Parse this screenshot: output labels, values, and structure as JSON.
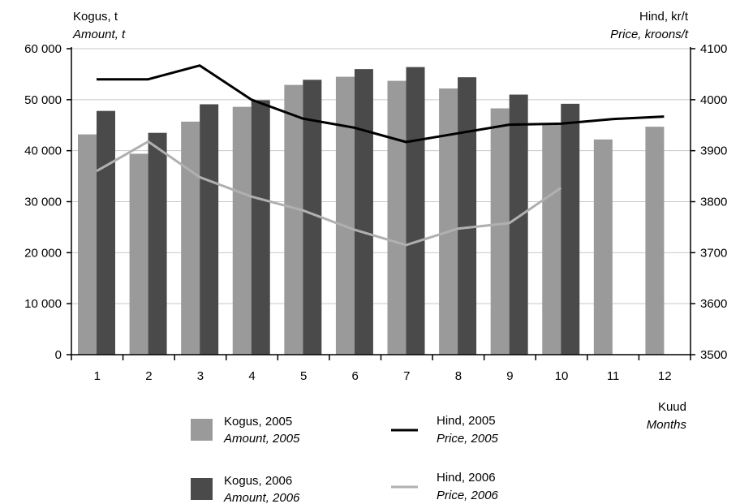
{
  "chart_data": {
    "type": "bar",
    "left_axis": {
      "title": "Kogus, t",
      "title_en": "Amount, t",
      "ticks": [
        "0",
        "10 000",
        "20 000",
        "30 000",
        "40 000",
        "50 000",
        "60 000"
      ],
      "ylim": [
        0,
        60000
      ]
    },
    "right_axis": {
      "title": "Hind, kr/t",
      "title_en": "Price, kroons/t",
      "ticks": [
        "3500",
        "3600",
        "3700",
        "3800",
        "3900",
        "4000",
        "4100"
      ],
      "ylim": [
        3500,
        4100
      ]
    },
    "x_axis": {
      "title": "Kuud",
      "title_en": "Months"
    },
    "categories": [
      "1",
      "2",
      "3",
      "4",
      "5",
      "6",
      "7",
      "8",
      "9",
      "10",
      "11",
      "12"
    ],
    "series": [
      {
        "name": "Kogus, 2005",
        "name_en": "Amount, 2005",
        "kind": "bar",
        "axis": "left",
        "color": "#9a9a9a",
        "values": [
          43200,
          39400,
          45700,
          48600,
          52900,
          54500,
          53700,
          52200,
          48300,
          45300,
          42200,
          44700
        ]
      },
      {
        "name": "Kogus, 2006",
        "name_en": "Amount, 2006",
        "kind": "bar",
        "axis": "left",
        "color": "#4a4a4a",
        "values": [
          47800,
          43500,
          49100,
          49900,
          53900,
          56000,
          56400,
          54400,
          51000,
          49200,
          null,
          null
        ]
      },
      {
        "name": "Hind, 2005",
        "name_en": "Price, 2005",
        "kind": "line",
        "axis": "right",
        "color": "#000000",
        "values": [
          4040,
          4040,
          4067,
          4000,
          3963,
          3945,
          3917,
          3934,
          3951,
          3953,
          3962,
          3967
        ]
      },
      {
        "name": "Hind, 2006",
        "name_en": "Price, 2006",
        "kind": "line",
        "axis": "right",
        "color": "#b0b0b0",
        "values": [
          3860,
          3918,
          3848,
          3810,
          3783,
          3745,
          3715,
          3747,
          3758,
          3827,
          null,
          null
        ]
      }
    ],
    "grid": true,
    "legend_placement": "bottom"
  }
}
